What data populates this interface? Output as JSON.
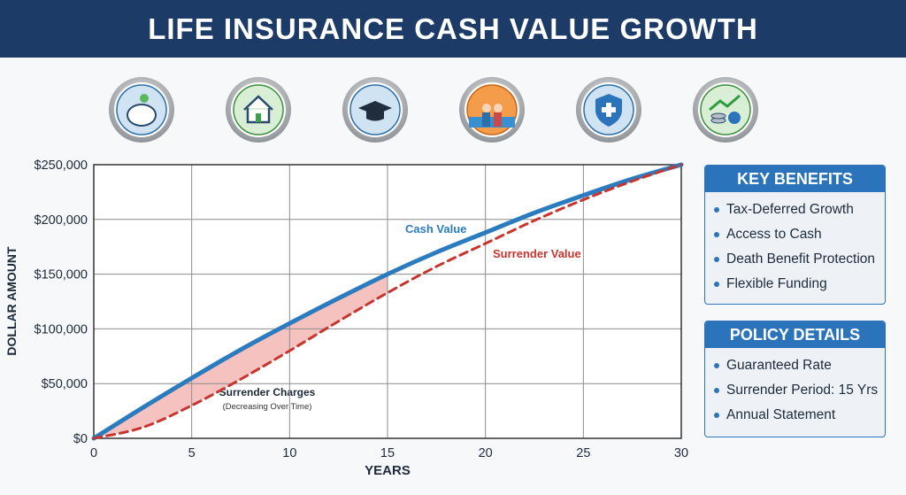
{
  "header": {
    "title": "LIFE INSURANCE CASH VALUE GROWTH"
  },
  "chart_data": {
    "type": "line",
    "x": [
      0,
      2.5,
      5,
      7.5,
      10,
      12.5,
      15,
      17.5,
      20,
      22.5,
      25,
      27.5,
      30
    ],
    "series": [
      {
        "name": "Cash Value",
        "color": "#2b7bbf",
        "style": "solid",
        "values": [
          0,
          28000,
          55000,
          81000,
          105000,
          128000,
          150000,
          170000,
          188000,
          206000,
          222000,
          237000,
          250000
        ]
      },
      {
        "name": "Surrender Value",
        "color": "#c8352e",
        "style": "dashed",
        "values": [
          0,
          10000,
          30000,
          54000,
          80000,
          107000,
          133000,
          157000,
          178000,
          199000,
          218000,
          235000,
          250000
        ]
      }
    ],
    "xlim": [
      0,
      30
    ],
    "xticks": [
      0,
      5,
      10,
      15,
      20,
      25,
      30
    ],
    "ylim": [
      0,
      250000
    ],
    "yticks": [
      {
        "value": 0,
        "label": "$0"
      },
      {
        "value": 50000,
        "label": "$50,000"
      },
      {
        "value": 100000,
        "label": "$100,000"
      },
      {
        "value": 150000,
        "label": "$150,000"
      },
      {
        "value": 200000,
        "label": "$200,000"
      },
      {
        "value": 250000,
        "label": "$250,000"
      }
    ],
    "xlabel": "YEARS",
    "ylabel": "DOLLAR AMOUNT",
    "grid": true,
    "shaded_region": {
      "x_end": 15,
      "color": "#f3b3b0",
      "title": "Surrender Charges",
      "subtitle": "(Decreasing Over Time)"
    }
  },
  "panels": [
    {
      "title": "KEY BENEFITS",
      "items": [
        "Tax-Deferred Growth",
        "Access to Cash",
        "Death Benefit Protection",
        "Flexible Funding"
      ]
    },
    {
      "title": "POLICY DETAILS",
      "items": [
        "Guaranteed Rate",
        "Surrender Period: 15 Yrs",
        "Annual Statement"
      ]
    }
  ]
}
